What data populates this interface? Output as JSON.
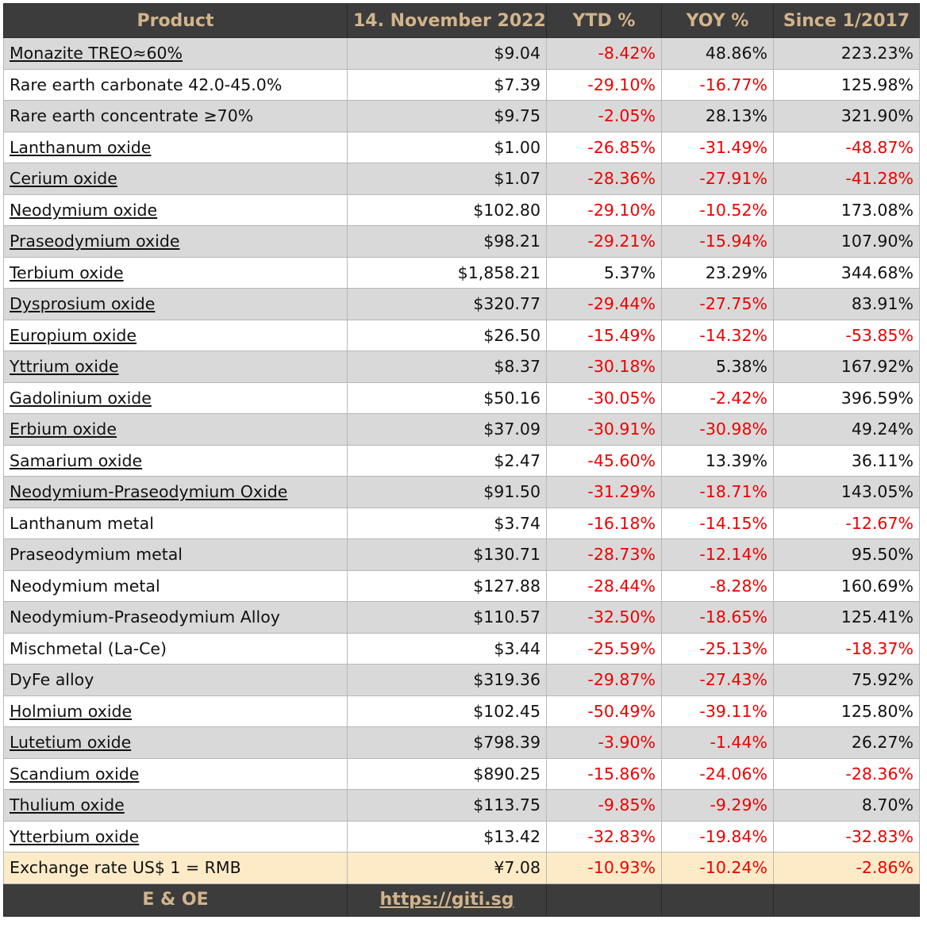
{
  "headers": [
    "Product",
    "14. November 2022",
    "YTD %",
    "YOY %",
    "Since 1/2017"
  ],
  "rows": [
    {
      "name": "Monazite TREO≈60%",
      "link": true,
      "price": "$9.04",
      "ytd": "-8.42%",
      "yoy": "48.86%",
      "since": "223.23%"
    },
    {
      "name": "Rare earth carbonate 42.0-45.0%",
      "link": false,
      "price": "$7.39",
      "ytd": "-29.10%",
      "yoy": "-16.77%",
      "since": "125.98%"
    },
    {
      "name": "Rare earth concentrate ≥70%",
      "link": false,
      "price": "$9.75",
      "ytd": "-2.05%",
      "yoy": "28.13%",
      "since": "321.90%"
    },
    {
      "name": "Lanthanum oxide",
      "link": true,
      "price": "$1.00",
      "ytd": "-26.85%",
      "yoy": "-31.49%",
      "since": "-48.87%"
    },
    {
      "name": "Cerium oxide",
      "link": true,
      "price": "$1.07",
      "ytd": "-28.36%",
      "yoy": "-27.91%",
      "since": "-41.28%"
    },
    {
      "name": "Neodymium oxide",
      "link": true,
      "price": "$102.80",
      "ytd": "-29.10%",
      "yoy": "-10.52%",
      "since": "173.08%"
    },
    {
      "name": "Praseodymium oxide",
      "link": true,
      "price": "$98.21",
      "ytd": "-29.21%",
      "yoy": "-15.94%",
      "since": "107.90%"
    },
    {
      "name": "Terbium oxide",
      "link": true,
      "price": "$1,858.21",
      "ytd": "5.37%",
      "yoy": "23.29%",
      "since": "344.68%"
    },
    {
      "name": "Dysprosium oxide",
      "link": true,
      "price": "$320.77",
      "ytd": "-29.44%",
      "yoy": "-27.75%",
      "since": "83.91%"
    },
    {
      "name": "Europium oxide",
      "link": true,
      "price": "$26.50",
      "ytd": "-15.49%",
      "yoy": "-14.32%",
      "since": "-53.85%"
    },
    {
      "name": "Yttrium oxide",
      "link": true,
      "price": "$8.37",
      "ytd": "-30.18%",
      "yoy": "5.38%",
      "since": "167.92%"
    },
    {
      "name": "Gadolinium oxide",
      "link": true,
      "price": "$50.16",
      "ytd": "-30.05%",
      "yoy": "-2.42%",
      "since": "396.59%"
    },
    {
      "name": "Erbium oxide",
      "link": true,
      "price": "$37.09",
      "ytd": "-30.91%",
      "yoy": "-30.98%",
      "since": "49.24%"
    },
    {
      "name": "Samarium oxide",
      "link": true,
      "price": "$2.47",
      "ytd": "-45.60%",
      "yoy": "13.39%",
      "since": "36.11%"
    },
    {
      "name": "Neodymium-Praseodymium Oxide",
      "link": true,
      "price": "$91.50",
      "ytd": "-31.29%",
      "yoy": "-18.71%",
      "since": "143.05%"
    },
    {
      "name": "Lanthanum metal",
      "link": false,
      "price": "$3.74",
      "ytd": "-16.18%",
      "yoy": "-14.15%",
      "since": "-12.67%"
    },
    {
      "name": "Praseodymium metal",
      "link": false,
      "price": "$130.71",
      "ytd": "-28.73%",
      "yoy": "-12.14%",
      "since": "95.50%"
    },
    {
      "name": "Neodymium metal",
      "link": false,
      "price": "$127.88",
      "ytd": "-28.44%",
      "yoy": "-8.28%",
      "since": "160.69%"
    },
    {
      "name": "Neodymium-Praseodymium Alloy",
      "link": false,
      "price": "$110.57",
      "ytd": "-32.50%",
      "yoy": "-18.65%",
      "since": "125.41%"
    },
    {
      "name": "Mischmetal (La-Ce)",
      "link": false,
      "price": "$3.44",
      "ytd": "-25.59%",
      "yoy": "-25.13%",
      "since": "-18.37%"
    },
    {
      "name": "DyFe alloy",
      "link": false,
      "price": "$319.36",
      "ytd": "-29.87%",
      "yoy": "-27.43%",
      "since": "75.92%"
    },
    {
      "name": "Holmium oxide",
      "link": true,
      "price": "$102.45",
      "ytd": "-50.49%",
      "yoy": "-39.11%",
      "since": "125.80%"
    },
    {
      "name": "Lutetium oxide",
      "link": true,
      "price": "$798.39",
      "ytd": "-3.90%",
      "yoy": "-1.44%",
      "since": "26.27%"
    },
    {
      "name": "Scandium oxide",
      "link": true,
      "price": "$890.25",
      "ytd": "-15.86%",
      "yoy": "-24.06%",
      "since": "-28.36%"
    },
    {
      "name": "Thulium oxide",
      "link": true,
      "price": "$113.75",
      "ytd": "-9.85%",
      "yoy": "-9.29%",
      "since": "8.70%"
    },
    {
      "name": "Ytterbium oxide",
      "link": true,
      "price": "$13.42",
      "ytd": "-32.83%",
      "yoy": "-19.84%",
      "since": "-32.83%"
    }
  ],
  "exchange": {
    "name": "Exchange rate US$ 1 = RMB",
    "price": "¥7.08",
    "ytd": "-10.93%",
    "yoy": "-10.24%",
    "since": "-2.86%"
  },
  "footer": {
    "note": "E & OE",
    "link": "https://giti.sg"
  },
  "colors": {
    "header_bg": "#3c3c3c",
    "header_text": "#d2b48c",
    "negative": "#ee0000",
    "row_alt": "#d9d9d9",
    "exchange_bg": "#fdebc8"
  }
}
